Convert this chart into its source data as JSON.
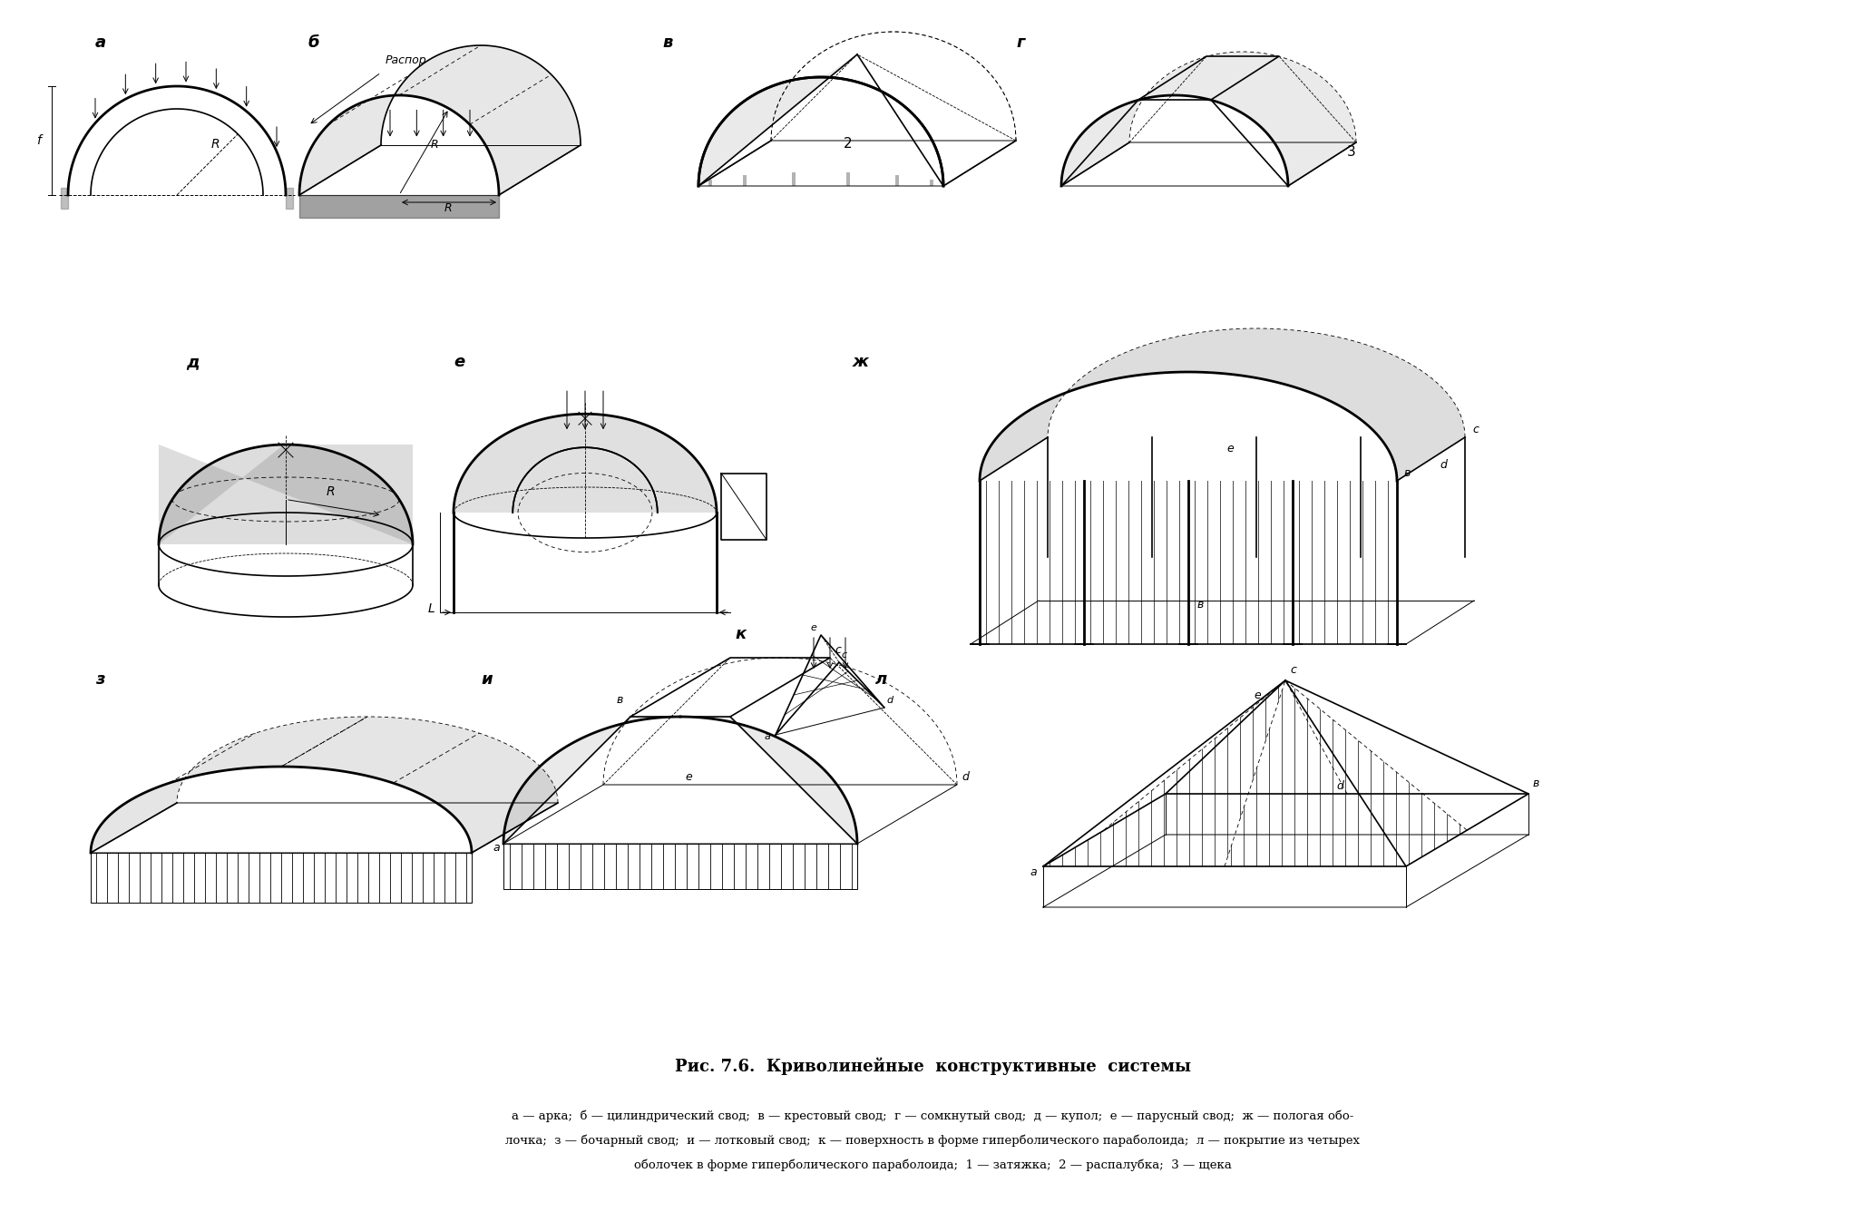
{
  "title": "Рис. 7.6.  Криволинейные  конструктивные  системы",
  "cap1": "а — арка;  б — цилиндрический свод;  в — крестовый свод;  г — сомкнутый свод;  д — купол;  е — парусный свод;  ж — пологая обо-",
  "cap2": "лочка;  з — бочарный свод;  и — лотковый свод;  к — поверхность в форме гиперболического параболоида;  л — покрытие из четырех",
  "cap3": "оболочек в форме гиперболического параболоида;  1 — затяжка;  2 — распалубка;  3 — щека",
  "fig_width": 20.56,
  "fig_height": 13.47,
  "dpi": 100
}
